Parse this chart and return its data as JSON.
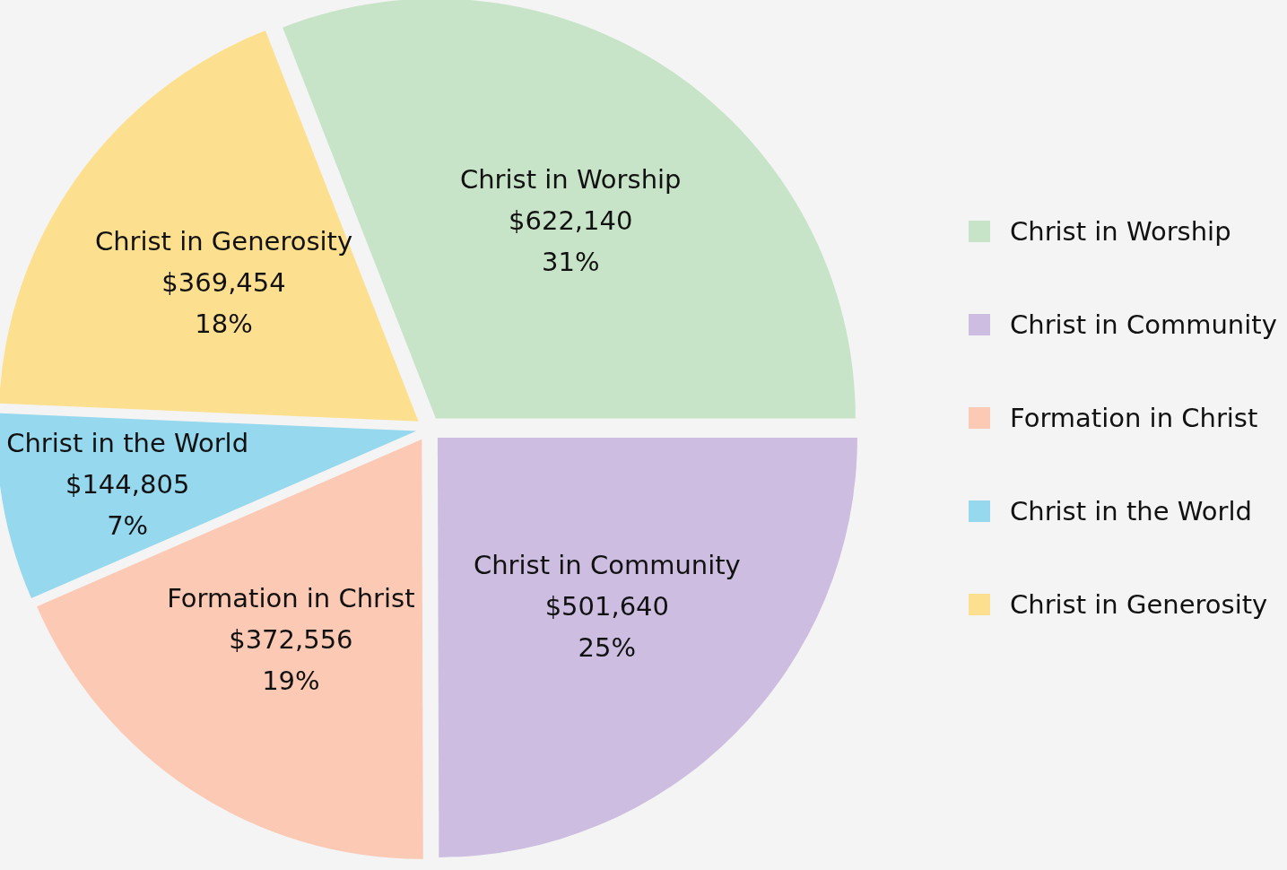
{
  "chart_data": {
    "type": "pie",
    "categories": [
      "Christ in Worship",
      "Christ in Community",
      "Formation in Christ",
      "Christ in the World",
      "Christ in Generosity"
    ],
    "values": [
      622140,
      501640,
      372556,
      144805,
      369454
    ],
    "value_labels": [
      "$622,140\n31%",
      "$501,640\n25%",
      "$372,556\n19%",
      "$144,805\n7%",
      "$369,454\n18%"
    ],
    "colors": [
      "#c8e4c8",
      "#cdbde0",
      "#fbc9b4",
      "#96d8ee",
      "#fde08f"
    ],
    "legend": "right"
  }
}
